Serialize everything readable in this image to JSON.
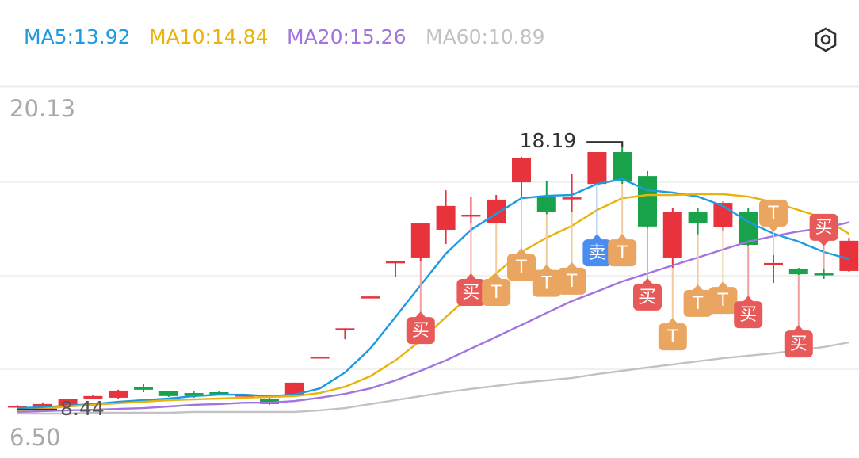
{
  "chart_data": {
    "type": "candlestick",
    "ylim": [
      6.5,
      20.13
    ],
    "yticks": [
      {
        "value": 20.13,
        "label": "20.13"
      },
      {
        "value": 6.5,
        "label": "6.50"
      }
    ],
    "up_color": "#e8333d",
    "down_color": "#18a34a",
    "open": [
      8.52,
      8.49,
      8.58,
      8.84,
      8.87,
      9.27,
      9.1,
      9.04,
      9.07,
      8.95,
      8.84,
      8.98,
      10.31,
      11.35,
      12.51,
      13.78,
      13.98,
      14.99,
      15.48,
      15.22,
      16.72,
      16.2,
      16.11,
      16.66,
      17.82,
      16.95,
      13.98,
      15.63,
      15.08,
      15.63,
      13.72,
      13.55,
      13.4,
      13.49
    ],
    "close": [
      8.58,
      8.64,
      8.81,
      8.93,
      9.13,
      9.16,
      8.93,
      8.93,
      9.01,
      8.98,
      8.64,
      9.42,
      10.37,
      11.4,
      12.56,
      13.84,
      15.22,
      15.86,
      15.54,
      16.09,
      17.59,
      15.63,
      16.17,
      17.82,
      16.78,
      15.11,
      15.63,
      15.22,
      15.97,
      14.44,
      13.78,
      13.37,
      13.34,
      14.59
    ],
    "high": [
      8.6,
      8.7,
      8.84,
      8.98,
      9.16,
      9.39,
      9.13,
      9.1,
      9.1,
      9.01,
      8.87,
      9.42,
      10.37,
      11.4,
      12.56,
      13.84,
      15.22,
      16.43,
      16.2,
      16.26,
      17.65,
      16.78,
      17.01,
      17.82,
      18.19,
      17.13,
      15.8,
      15.8,
      16.03,
      15.8,
      14.07,
      13.6,
      13.55,
      14.7
    ],
    "low": [
      8.44,
      8.46,
      8.55,
      8.81,
      8.84,
      9.07,
      8.9,
      8.87,
      8.98,
      8.93,
      8.61,
      8.95,
      10.31,
      11.0,
      12.51,
      13.26,
      13.83,
      14.47,
      15.22,
      15.22,
      16.14,
      15.55,
      15.63,
      16.66,
      16.66,
      15.05,
      13.6,
      14.82,
      14.93,
      14.41,
      13.05,
      13.34,
      13.2,
      13.46
    ],
    "series": [
      {
        "name": "MA5:13.92",
        "color": "#1e9be0",
        "values": [
          8.49,
          8.52,
          8.58,
          8.64,
          8.72,
          8.78,
          8.84,
          8.93,
          8.98,
          8.98,
          8.93,
          8.98,
          9.21,
          9.79,
          10.66,
          11.81,
          12.97,
          14.12,
          14.99,
          15.57,
          16.14,
          16.23,
          16.26,
          16.66,
          16.84,
          16.43,
          16.35,
          16.2,
          15.86,
          15.28,
          14.85,
          14.56,
          14.18,
          13.92
        ]
      },
      {
        "name": "MA10:14.84",
        "color": "#e8b40c",
        "values": [
          8.41,
          8.46,
          8.55,
          8.61,
          8.67,
          8.72,
          8.78,
          8.81,
          8.84,
          8.87,
          8.9,
          8.93,
          9.04,
          9.27,
          9.65,
          10.23,
          10.95,
          11.81,
          12.62,
          13.4,
          14.18,
          14.7,
          15.13,
          15.71,
          16.14,
          16.26,
          16.26,
          16.29,
          16.29,
          16.2,
          16.0,
          15.71,
          15.42,
          14.84
        ]
      },
      {
        "name": "MA20:15.26",
        "color": "#a374e0",
        "values": [
          8.35,
          8.38,
          8.41,
          8.43,
          8.46,
          8.49,
          8.55,
          8.61,
          8.64,
          8.69,
          8.69,
          8.75,
          8.87,
          9.01,
          9.21,
          9.5,
          9.85,
          10.23,
          10.66,
          11.09,
          11.52,
          11.96,
          12.39,
          12.74,
          13.11,
          13.4,
          13.69,
          13.98,
          14.27,
          14.56,
          14.76,
          14.93,
          15.05,
          15.26
        ]
      },
      {
        "name": "MA60:10.89",
        "color": "#c2c2c2",
        "values": [
          8.29,
          8.29,
          8.29,
          8.32,
          8.32,
          8.32,
          8.32,
          8.35,
          8.35,
          8.35,
          8.35,
          8.35,
          8.41,
          8.49,
          8.64,
          8.78,
          8.93,
          9.07,
          9.19,
          9.3,
          9.42,
          9.5,
          9.59,
          9.73,
          9.85,
          9.97,
          10.08,
          10.2,
          10.31,
          10.4,
          10.49,
          10.6,
          10.72,
          10.89
        ]
      }
    ],
    "high_mark": {
      "index": 24,
      "value": 18.19
    },
    "low_mark": {
      "index": 0,
      "value": 8.44
    },
    "signals": [
      {
        "index": 16,
        "label": "买",
        "side": "below"
      },
      {
        "index": 18,
        "label": "买",
        "side": "below"
      },
      {
        "index": 19,
        "label": "T",
        "side": "below"
      },
      {
        "index": 20,
        "label": "T",
        "side": "below"
      },
      {
        "index": 21,
        "label": "T",
        "side": "below"
      },
      {
        "index": 22,
        "label": "T",
        "side": "below"
      },
      {
        "index": 23,
        "label": "卖",
        "side": "below"
      },
      {
        "index": 24,
        "label": "T",
        "side": "below"
      },
      {
        "index": 25,
        "label": "买",
        "side": "below"
      },
      {
        "index": 26,
        "label": "T",
        "side": "below"
      },
      {
        "index": 27,
        "label": "T",
        "side": "below"
      },
      {
        "index": 28,
        "label": "T",
        "side": "below"
      },
      {
        "index": 29,
        "label": "买",
        "side": "below"
      },
      {
        "index": 30,
        "label": "T",
        "side": "above"
      },
      {
        "index": 31,
        "label": "买",
        "side": "below"
      },
      {
        "index": 32,
        "label": "买",
        "side": "above"
      }
    ]
  }
}
